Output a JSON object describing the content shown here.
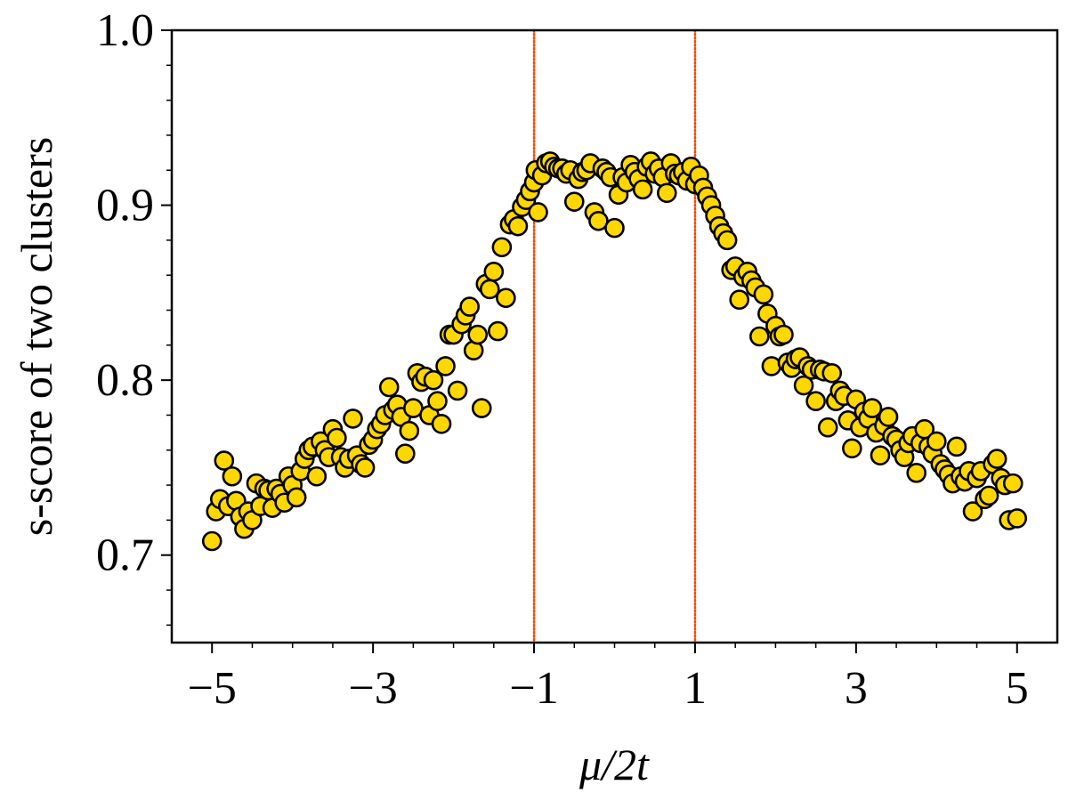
{
  "chart_data": {
    "type": "scatter",
    "title": "",
    "xlabel": "μ/2t",
    "ylabel": "s-score of two clusters",
    "xlim": [
      -5.5,
      5.5
    ],
    "ylim": [
      0.65,
      1.0
    ],
    "x_ticks": [
      -5,
      -3,
      -1,
      1,
      3,
      5
    ],
    "x_tick_labels": [
      "−5",
      "−3",
      "−1",
      "1",
      "3",
      "5"
    ],
    "y_ticks": [
      0.7,
      0.8,
      0.9,
      1.0
    ],
    "y_tick_labels": [
      "0.7",
      "0.8",
      "0.9",
      "1.0"
    ],
    "grid": false,
    "legend": "none",
    "marker_color": "#FFD700",
    "marker_edge_color": "#000000",
    "reference_lines": [
      {
        "orientation": "vertical",
        "x": -1,
        "style": "dotted",
        "color": "#FF4500"
      },
      {
        "orientation": "vertical",
        "x": 1,
        "style": "dotted",
        "color": "#FF4500"
      }
    ],
    "series": [
      {
        "points": [
          [
            -5.0,
            0.708
          ],
          [
            -4.95,
            0.725
          ],
          [
            -4.9,
            0.732
          ],
          [
            -4.85,
            0.754
          ],
          [
            -4.8,
            0.728
          ],
          [
            -4.75,
            0.745
          ],
          [
            -4.7,
            0.731
          ],
          [
            -4.65,
            0.722
          ],
          [
            -4.6,
            0.715
          ],
          [
            -4.55,
            0.725
          ],
          [
            -4.5,
            0.72
          ],
          [
            -4.45,
            0.741
          ],
          [
            -4.4,
            0.728
          ],
          [
            -4.35,
            0.738
          ],
          [
            -4.3,
            0.737
          ],
          [
            -4.25,
            0.727
          ],
          [
            -4.2,
            0.738
          ],
          [
            -4.15,
            0.735
          ],
          [
            -4.1,
            0.73
          ],
          [
            -4.05,
            0.745
          ],
          [
            -4.0,
            0.74
          ],
          [
            -3.95,
            0.733
          ],
          [
            -3.9,
            0.748
          ],
          [
            -3.85,
            0.755
          ],
          [
            -3.8,
            0.76
          ],
          [
            -3.75,
            0.762
          ],
          [
            -3.7,
            0.745
          ],
          [
            -3.65,
            0.765
          ],
          [
            -3.6,
            0.76
          ],
          [
            -3.55,
            0.756
          ],
          [
            -3.5,
            0.772
          ],
          [
            -3.45,
            0.767
          ],
          [
            -3.4,
            0.756
          ],
          [
            -3.35,
            0.75
          ],
          [
            -3.3,
            0.755
          ],
          [
            -3.25,
            0.778
          ],
          [
            -3.2,
            0.757
          ],
          [
            -3.15,
            0.752
          ],
          [
            -3.1,
            0.75
          ],
          [
            -3.05,
            0.763
          ],
          [
            -3.0,
            0.766
          ],
          [
            -2.95,
            0.772
          ],
          [
            -2.9,
            0.775
          ],
          [
            -2.85,
            0.78
          ],
          [
            -2.8,
            0.796
          ],
          [
            -2.75,
            0.783
          ],
          [
            -2.7,
            0.786
          ],
          [
            -2.65,
            0.779
          ],
          [
            -2.6,
            0.758
          ],
          [
            -2.55,
            0.771
          ],
          [
            -2.5,
            0.784
          ],
          [
            -2.45,
            0.804
          ],
          [
            -2.4,
            0.799
          ],
          [
            -2.35,
            0.802
          ],
          [
            -2.3,
            0.78
          ],
          [
            -2.25,
            0.8
          ],
          [
            -2.2,
            0.788
          ],
          [
            -2.15,
            0.775
          ],
          [
            -2.1,
            0.808
          ],
          [
            -2.05,
            0.826
          ],
          [
            -2.0,
            0.826
          ],
          [
            -1.95,
            0.794
          ],
          [
            -1.9,
            0.832
          ],
          [
            -1.85,
            0.837
          ],
          [
            -1.8,
            0.842
          ],
          [
            -1.75,
            0.817
          ],
          [
            -1.7,
            0.826
          ],
          [
            -1.65,
            0.784
          ],
          [
            -1.6,
            0.855
          ],
          [
            -1.55,
            0.852
          ],
          [
            -1.5,
            0.862
          ],
          [
            -1.45,
            0.828
          ],
          [
            -1.4,
            0.876
          ],
          [
            -1.35,
            0.847
          ],
          [
            -1.3,
            0.889
          ],
          [
            -1.25,
            0.892
          ],
          [
            -1.2,
            0.888
          ],
          [
            -1.15,
            0.899
          ],
          [
            -1.1,
            0.903
          ],
          [
            -1.05,
            0.908
          ],
          [
            -1.0,
            0.913
          ],
          [
            -0.98,
            0.92
          ],
          [
            -0.95,
            0.896
          ],
          [
            -0.9,
            0.917
          ],
          [
            -0.85,
            0.924
          ],
          [
            -0.8,
            0.925
          ],
          [
            -0.75,
            0.922
          ],
          [
            -0.7,
            0.921
          ],
          [
            -0.65,
            0.921
          ],
          [
            -0.6,
            0.918
          ],
          [
            -0.55,
            0.92
          ],
          [
            -0.5,
            0.902
          ],
          [
            -0.45,
            0.915
          ],
          [
            -0.4,
            0.919
          ],
          [
            -0.35,
            0.92
          ],
          [
            -0.3,
            0.924
          ],
          [
            -0.25,
            0.896
          ],
          [
            -0.2,
            0.891
          ],
          [
            -0.15,
            0.921
          ],
          [
            -0.1,
            0.919
          ],
          [
            -0.05,
            0.916
          ],
          [
            0.0,
            0.887
          ],
          [
            0.05,
            0.906
          ],
          [
            0.1,
            0.916
          ],
          [
            0.15,
            0.913
          ],
          [
            0.2,
            0.923
          ],
          [
            0.25,
            0.919
          ],
          [
            0.3,
            0.915
          ],
          [
            0.35,
            0.909
          ],
          [
            0.4,
            0.922
          ],
          [
            0.45,
            0.925
          ],
          [
            0.5,
            0.918
          ],
          [
            0.55,
            0.921
          ],
          [
            0.6,
            0.916
          ],
          [
            0.65,
            0.907
          ],
          [
            0.7,
            0.924
          ],
          [
            0.75,
            0.918
          ],
          [
            0.8,
            0.917
          ],
          [
            0.85,
            0.919
          ],
          [
            0.9,
            0.914
          ],
          [
            0.95,
            0.922
          ],
          [
            1.0,
            0.912
          ],
          [
            1.05,
            0.917
          ],
          [
            1.1,
            0.91
          ],
          [
            1.15,
            0.905
          ],
          [
            1.2,
            0.9
          ],
          [
            1.25,
            0.894
          ],
          [
            1.3,
            0.888
          ],
          [
            1.35,
            0.884
          ],
          [
            1.4,
            0.88
          ],
          [
            1.45,
            0.863
          ],
          [
            1.5,
            0.865
          ],
          [
            1.55,
            0.846
          ],
          [
            1.6,
            0.859
          ],
          [
            1.65,
            0.862
          ],
          [
            1.7,
            0.857
          ],
          [
            1.75,
            0.853
          ],
          [
            1.8,
            0.825
          ],
          [
            1.85,
            0.849
          ],
          [
            1.9,
            0.838
          ],
          [
            1.95,
            0.808
          ],
          [
            2.0,
            0.831
          ],
          [
            2.05,
            0.825
          ],
          [
            2.1,
            0.826
          ],
          [
            2.15,
            0.81
          ],
          [
            2.2,
            0.807
          ],
          [
            2.25,
            0.812
          ],
          [
            2.3,
            0.813
          ],
          [
            2.35,
            0.797
          ],
          [
            2.4,
            0.808
          ],
          [
            2.45,
            0.806
          ],
          [
            2.5,
            0.788
          ],
          [
            2.55,
            0.806
          ],
          [
            2.6,
            0.805
          ],
          [
            2.65,
            0.773
          ],
          [
            2.7,
            0.804
          ],
          [
            2.75,
            0.788
          ],
          [
            2.8,
            0.794
          ],
          [
            2.85,
            0.791
          ],
          [
            2.9,
            0.777
          ],
          [
            2.95,
            0.761
          ],
          [
            3.0,
            0.789
          ],
          [
            3.05,
            0.773
          ],
          [
            3.1,
            0.782
          ],
          [
            3.15,
            0.778
          ],
          [
            3.2,
            0.784
          ],
          [
            3.25,
            0.77
          ],
          [
            3.3,
            0.757
          ],
          [
            3.35,
            0.774
          ],
          [
            3.4,
            0.779
          ],
          [
            3.45,
            0.768
          ],
          [
            3.5,
            0.766
          ],
          [
            3.55,
            0.76
          ],
          [
            3.6,
            0.756
          ],
          [
            3.65,
            0.764
          ],
          [
            3.7,
            0.768
          ],
          [
            3.75,
            0.747
          ],
          [
            3.8,
            0.764
          ],
          [
            3.85,
            0.772
          ],
          [
            3.9,
            0.762
          ],
          [
            3.95,
            0.758
          ],
          [
            4.0,
            0.765
          ],
          [
            4.05,
            0.752
          ],
          [
            4.1,
            0.749
          ],
          [
            4.15,
            0.746
          ],
          [
            4.2,
            0.741
          ],
          [
            4.25,
            0.762
          ],
          [
            4.3,
            0.745
          ],
          [
            4.35,
            0.742
          ],
          [
            4.4,
            0.748
          ],
          [
            4.45,
            0.725
          ],
          [
            4.5,
            0.744
          ],
          [
            4.55,
            0.748
          ],
          [
            4.6,
            0.732
          ],
          [
            4.65,
            0.734
          ],
          [
            4.7,
            0.752
          ],
          [
            4.75,
            0.755
          ],
          [
            4.8,
            0.744
          ],
          [
            4.85,
            0.74
          ],
          [
            4.9,
            0.72
          ],
          [
            4.95,
            0.741
          ],
          [
            5.0,
            0.721
          ]
        ]
      }
    ]
  }
}
